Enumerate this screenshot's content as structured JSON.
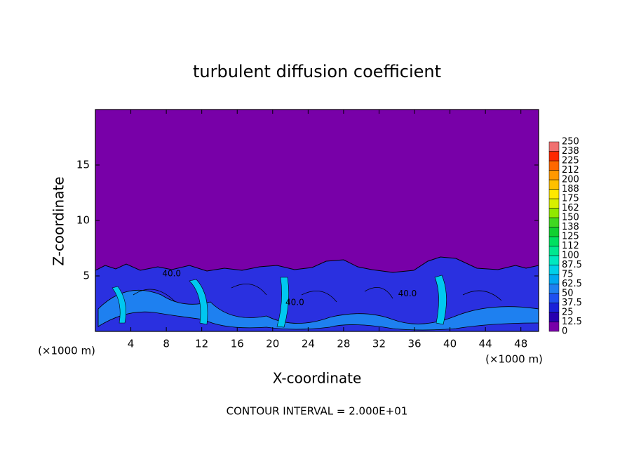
{
  "chart_data": {
    "type": "contour",
    "title": "turbulent diffusion coefficient",
    "xlabel": "X-coordinate",
    "ylabel": "Z-coordinate",
    "x_unit": "(×1000 m)",
    "footer": "CONTOUR INTERVAL = 2.000E+01",
    "xlim": [
      0,
      50
    ],
    "xticks": [
      4,
      8,
      12,
      16,
      20,
      24,
      28,
      32,
      36,
      40,
      44,
      48
    ],
    "ylim": [
      0,
      20
    ],
    "yticks": [
      5,
      10,
      15
    ],
    "contour_labels": [
      {
        "text": "40.0",
        "x": 8.6,
        "y": 5.2
      },
      {
        "text": "40.0",
        "x": 22.5,
        "y": 2.6
      },
      {
        "text": "40.0",
        "x": 35.2,
        "y": 3.4
      }
    ],
    "colorbar": {
      "levels": [
        0,
        12.5,
        25,
        37.5,
        50,
        62.5,
        75,
        87.5,
        100,
        112,
        125,
        138,
        150,
        162,
        175,
        188,
        200,
        212,
        225,
        238,
        250
      ],
      "colors": [
        "#7800a8",
        "#2800b0",
        "#1a20d8",
        "#1e50f0",
        "#1e80f0",
        "#00a8f0",
        "#00d0e8",
        "#00e8c0",
        "#00e890",
        "#00e060",
        "#10d030",
        "#40d820",
        "#90e800",
        "#d8f000",
        "#ffe800",
        "#ffc000",
        "#ff9800",
        "#ff6800",
        "#ff2800",
        "#f07070"
      ]
    }
  }
}
